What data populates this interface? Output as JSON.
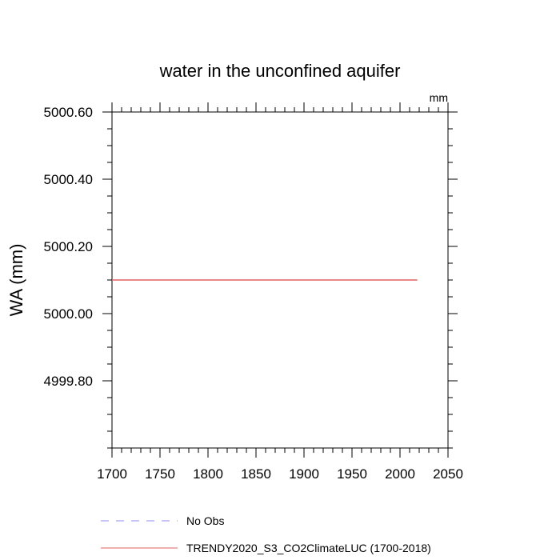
{
  "chart_data": {
    "type": "line",
    "title": "water in the unconfined aquifer",
    "units": "mm",
    "xlabel": "",
    "ylabel": "WA  (mm)",
    "xlim": [
      1700,
      2050
    ],
    "ylim": [
      4999.6,
      5000.6
    ],
    "xticks": [
      1700,
      1750,
      1800,
      1850,
      1900,
      1950,
      2000,
      2050
    ],
    "xtick_labels": [
      "1700",
      "1750",
      "1800",
      "1850",
      "1900",
      "1950",
      "2000",
      "2050"
    ],
    "yticks": [
      4999.8,
      5000.0,
      5000.2,
      5000.4,
      5000.6
    ],
    "ytick_labels": [
      "4999.80",
      "5000.00",
      "5000.20",
      "5000.40",
      "5000.60"
    ],
    "grid": false,
    "legend_position": "bottom",
    "series": [
      {
        "name": "No Obs",
        "color": "#8c8cf0",
        "style": "dashed",
        "x": [],
        "y": []
      },
      {
        "name": "TRENDY2020_S3_CO2ClimateLUC (1700-2018)",
        "color": "#e06060",
        "style": "solid",
        "x": [
          1700,
          2018
        ],
        "y": [
          5000.1,
          5000.1
        ]
      }
    ]
  }
}
